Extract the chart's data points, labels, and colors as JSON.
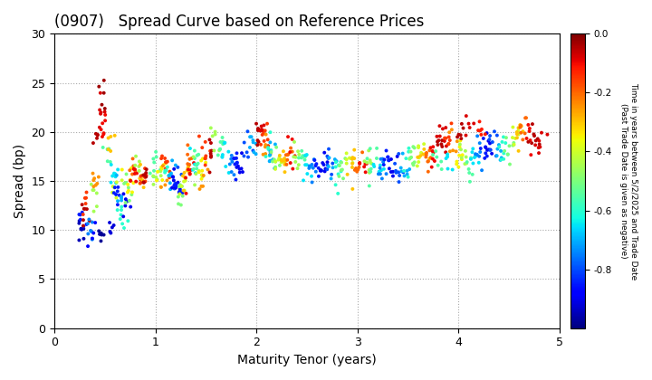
{
  "title": "(0907)   Spread Curve based on Reference Prices",
  "xlabel": "Maturity Tenor (years)",
  "ylabel": "Spread (bp)",
  "xlim": [
    0,
    5
  ],
  "ylim": [
    0,
    30
  ],
  "xticks": [
    0,
    1,
    2,
    3,
    4,
    5
  ],
  "yticks": [
    0,
    5,
    10,
    15,
    20,
    25,
    30
  ],
  "colorbar_label": "Time in years between 5/2/2025 and Trade Date\n(Past Trade Date is given as negative)",
  "colorbar_ticks": [
    0.0,
    -0.2,
    -0.4,
    -0.6,
    -0.8
  ],
  "cmap": "jet",
  "vmin": -1.0,
  "vmax": 0.0,
  "marker_size": 8,
  "background_color": "#ffffff",
  "grid_color": "#aaaaaa"
}
